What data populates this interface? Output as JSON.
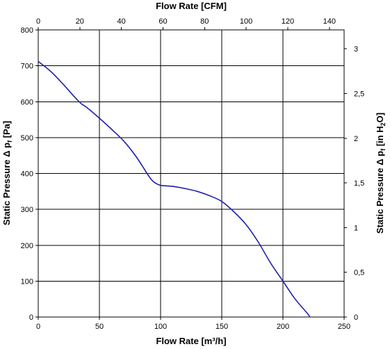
{
  "chart_data": {
    "type": "line",
    "xlabel": "Flow Rate [m³/h]",
    "ylabel": "Static Pressure Δ pf [Pa]",
    "ylabel_parts": [
      "Static Pressure Δ p",
      "f",
      " [Pa]"
    ],
    "x2label": "Flow Rate [CFM]",
    "y2label": "Static Pressure Δ pf [in H2O]",
    "y2label_parts": [
      "Static Pressure Δ p",
      "f",
      " [in H",
      "2",
      "O]"
    ],
    "xlim": [
      0,
      250
    ],
    "ylim": [
      0,
      800
    ],
    "x2lim": [
      0,
      147.1
    ],
    "y2lim": [
      0,
      3.2112
    ],
    "x_ticks": [
      0,
      50,
      100,
      150,
      200,
      250
    ],
    "x_tick_labels": [
      "0",
      "50",
      "100",
      "150",
      "200",
      "250"
    ],
    "y_ticks": [
      0,
      100,
      200,
      300,
      400,
      500,
      600,
      700,
      800
    ],
    "y_tick_labels": [
      "0",
      "100",
      "200",
      "300",
      "400",
      "500",
      "600",
      "700",
      "800"
    ],
    "x2_ticks": [
      0,
      20,
      40,
      60,
      80,
      100,
      120,
      140
    ],
    "x2_tick_labels": [
      "0",
      "20",
      "40",
      "60",
      "80",
      "100",
      "120",
      "140"
    ],
    "y2_ticks": [
      0,
      0.5,
      1,
      1.5,
      2,
      2.5,
      3
    ],
    "y2_tick_labels": [
      "0",
      "0,5",
      "1",
      "1,5",
      "2",
      "2,5",
      "3"
    ],
    "grid": true,
    "series": [
      {
        "color": "#1f1fb0",
        "x": [
          0,
          10,
          20,
          30,
          35,
          40,
          50,
          60,
          70,
          80,
          88,
          92,
          95,
          100,
          110,
          120,
          130,
          140,
          150,
          160,
          170,
          180,
          190,
          200,
          210,
          220,
          222
        ],
        "y": [
          712,
          685,
          650,
          612,
          595,
          583,
          554,
          523,
          490,
          447,
          405,
          385,
          375,
          367,
          364,
          358,
          350,
          338,
          322,
          293,
          257,
          208,
          150,
          100,
          50,
          10,
          0
        ]
      }
    ]
  }
}
